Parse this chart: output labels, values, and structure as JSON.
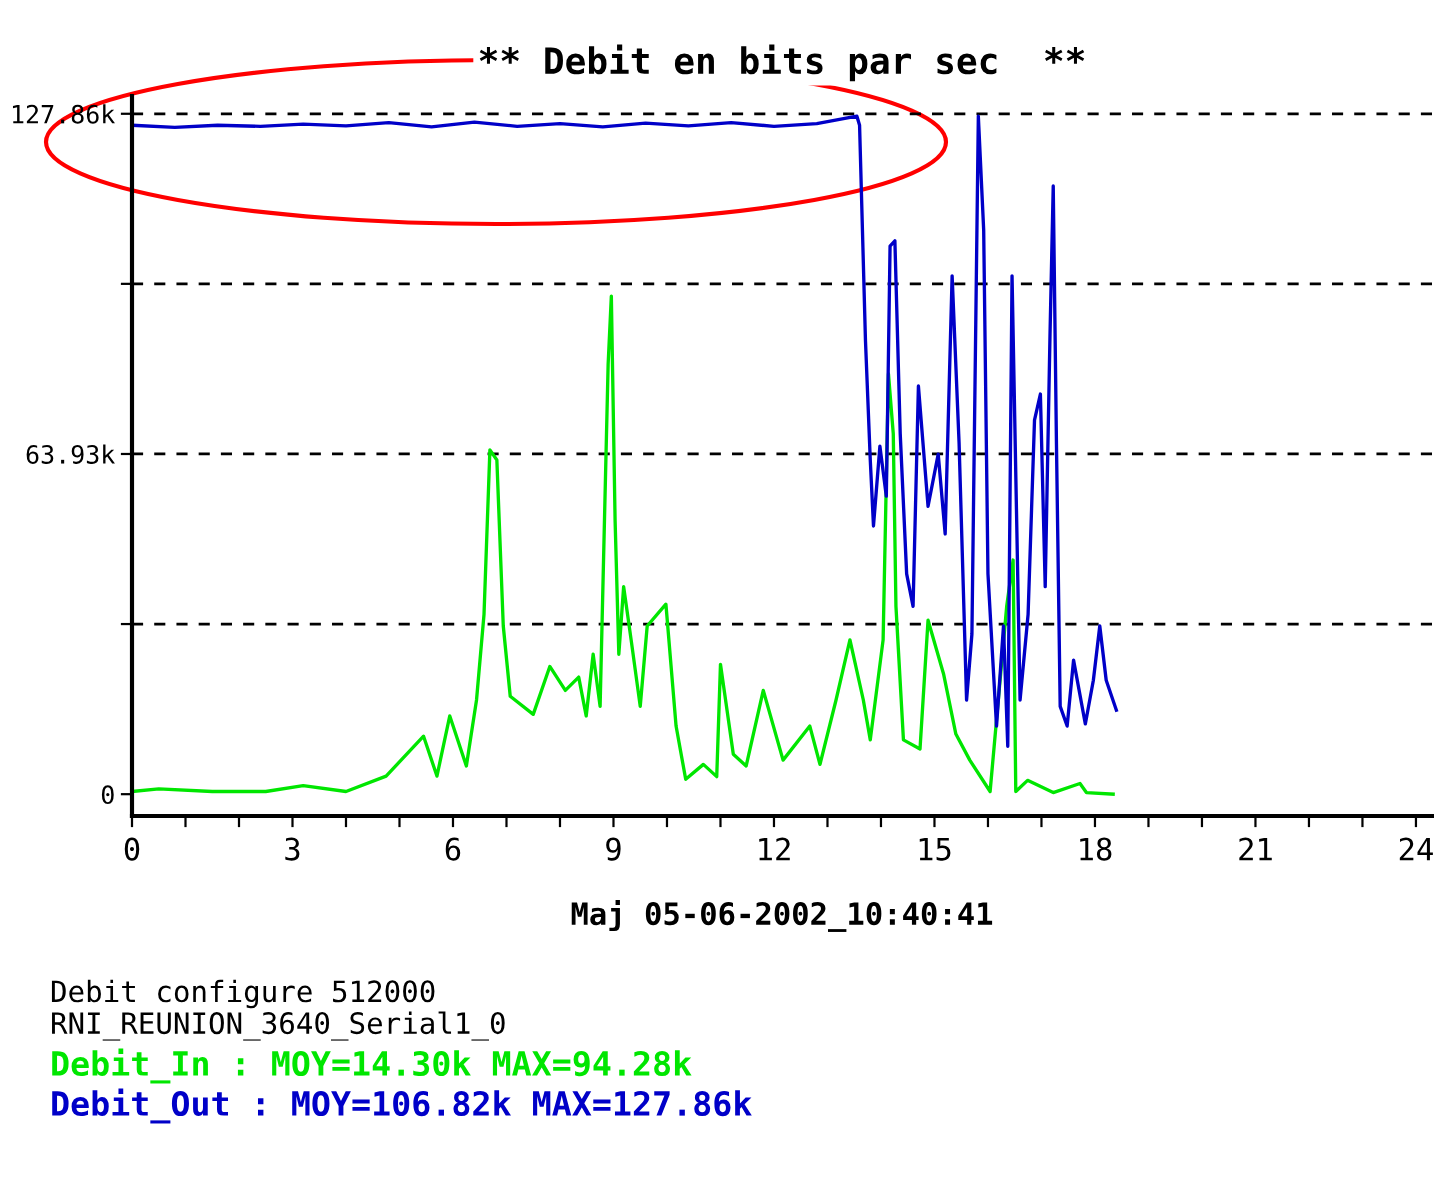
{
  "chart_data": {
    "type": "line",
    "title": "** Debit en bits par sec  **",
    "xlabel": "Maj 05-06-2002_10:40:41",
    "xlim": [
      0,
      24.3
    ],
    "ylim": [
      -4.1,
      131.2
    ],
    "xticks": [
      0,
      {
        "value": 1,
        "label": null
      },
      {
        "value": 2,
        "label": null
      },
      3,
      {
        "value": 4,
        "label": null
      },
      {
        "value": 5,
        "label": null
      },
      6,
      {
        "value": 7,
        "label": null
      },
      {
        "value": 8,
        "label": null
      },
      9,
      {
        "value": 10,
        "label": null
      },
      {
        "value": 11,
        "label": null
      },
      12,
      {
        "value": 13,
        "label": null
      },
      {
        "value": 14,
        "label": null
      },
      15,
      {
        "value": 16,
        "label": null
      },
      {
        "value": 17,
        "label": null
      },
      18,
      {
        "value": 19,
        "label": null
      },
      {
        "value": 20,
        "label": null
      },
      21,
      {
        "value": 22,
        "label": null
      },
      {
        "value": 23,
        "label": null
      },
      24
    ],
    "yticks": [
      0,
      {
        "value": 31.97,
        "label": null
      },
      {
        "value": 63.93,
        "label": "63.93k"
      },
      {
        "value": 95.9,
        "label": null
      },
      {
        "value": 127.86,
        "label": "127.86k"
      }
    ],
    "ref_lines": [
      {
        "axis": "y",
        "value": 31.97,
        "line_style": "dashed",
        "color": "#000000"
      },
      {
        "axis": "y",
        "value": 63.93,
        "line_style": "dashed",
        "color": "#000000"
      },
      {
        "axis": "y",
        "value": 95.9,
        "line_style": "dashed",
        "color": "#000000"
      },
      {
        "axis": "y",
        "value": 127.86,
        "line_style": "dashed",
        "color": "#000000"
      }
    ],
    "line_style": "solid",
    "marker": "none",
    "series": [
      {
        "color": "#00e600",
        "x": [
          0,
          0.5,
          1.5,
          2.5,
          3.2,
          4,
          4.75,
          5.45,
          5.7,
          5.94,
          6.25,
          6.44,
          6.58,
          6.69,
          6.82,
          6.94,
          7.07,
          7.5,
          7.81,
          8.1,
          8.35,
          8.49,
          8.62,
          8.75,
          8.9,
          8.96,
          9.03,
          9.1,
          9.19,
          9.33,
          9.5,
          9.63,
          9.98,
          10.17,
          10.35,
          10.68,
          10.93,
          11.0,
          11.24,
          11.48,
          11.8,
          12.17,
          12.67,
          12.86,
          13.16,
          13.42,
          13.67,
          13.8,
          14.04,
          14.14,
          14.23,
          14.28,
          14.42,
          14.73,
          14.88,
          15.17,
          15.4,
          15.66,
          16.04,
          16.35,
          16.47,
          16.52,
          16.74,
          17.22,
          17.72,
          17.84,
          18.34
        ],
        "values": [
          0.5,
          1,
          0.5,
          0.5,
          1.6,
          0.5,
          3.4,
          10.9,
          3.4,
          14.7,
          5.3,
          17.7,
          33.8,
          64.7,
          62.8,
          31.6,
          18.4,
          15,
          24,
          19.5,
          22,
          14.7,
          26.3,
          16.5,
          80.8,
          93.6,
          51.5,
          26.3,
          39,
          29,
          16.5,
          31.6,
          35.7,
          12.8,
          2.8,
          5.6,
          3.3,
          24.4,
          7.5,
          5.3,
          19.5,
          6.4,
          12.8,
          5.6,
          17.7,
          29,
          17.7,
          10.2,
          29,
          79,
          67.7,
          35.3,
          10.2,
          8.5,
          32.7,
          22.6,
          11.3,
          6.4,
          0.5,
          35.3,
          44,
          0.5,
          2.6,
          0.3,
          2,
          0.3,
          0
        ]
      },
      {
        "color": "#0000c8",
        "x": [
          0,
          0.8,
          1.6,
          2.4,
          3.2,
          4,
          4.8,
          5.6,
          6.4,
          7.2,
          8,
          8.8,
          9.6,
          10.4,
          11.2,
          12,
          12.8,
          13.55,
          13.6,
          13.71,
          13.8,
          13.86,
          13.98,
          14.1,
          14.17,
          14.26,
          14.36,
          14.48,
          14.6,
          14.7,
          14.88,
          15.07,
          15.2,
          15.33,
          15.46,
          15.6,
          15.7,
          15.82,
          15.92,
          16.0,
          16.16,
          16.29,
          16.37,
          16.45,
          16.6,
          16.75,
          16.87,
          16.98,
          17.07,
          17.16,
          17.22,
          17.28,
          17.35,
          17.48,
          17.6,
          17.82,
          17.97,
          18.09,
          18.21,
          18.4
        ],
        "values": [
          125.7,
          125.3,
          125.7,
          125.5,
          125.9,
          125.6,
          126.2,
          125.4,
          126.3,
          125.5,
          126.0,
          125.4,
          126.1,
          125.6,
          126.2,
          125.5,
          126.0,
          127.4,
          125.7,
          85.3,
          62.8,
          50.4,
          65.4,
          56,
          103,
          104,
          67.7,
          41.4,
          35.3,
          76.7,
          54.1,
          63.9,
          48.9,
          97.4,
          66,
          17.7,
          30.1,
          127.4,
          106,
          41.4,
          12.8,
          31.6,
          9,
          97.4,
          17.7,
          33.8,
          70.3,
          75.2,
          39,
          86.5,
          114.3,
          66,
          16.5,
          12.8,
          25.2,
          13.2,
          21.4,
          31.6,
          21.4,
          15.8
        ]
      }
    ],
    "annotations": [
      "Debit configure 512000",
      "RNI_REUNION_3640_Serial1_0",
      "Debit_In : MOY=14.30k MAX=94.28k",
      "Debit_Out : MOY=106.82k MAX=127.86k"
    ],
    "grid": false
  }
}
